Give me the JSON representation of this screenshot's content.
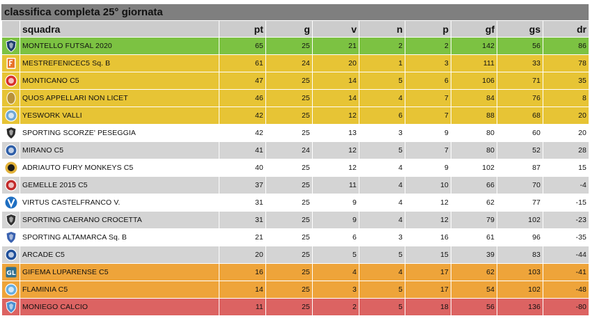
{
  "title": "classifica completa 25° giornata",
  "columns": {
    "team": "squadra",
    "pt": "pt",
    "g": "g",
    "v": "v",
    "n": "n",
    "p": "p",
    "gf": "gf",
    "gs": "gs",
    "dr": "dr"
  },
  "rows": [
    {
      "team": "MONTELLO FUTSAL 2020",
      "pt": "65",
      "g": "25",
      "v": "21",
      "n": "2",
      "p": "2",
      "gf": "142",
      "gs": "56",
      "dr": "86",
      "zone": "green",
      "logo_color": "#1f3f6f",
      "logo": "shield-icon"
    },
    {
      "team": "MESTREFENICEC5 Sq. B",
      "pt": "61",
      "g": "24",
      "v": "20",
      "n": "1",
      "p": "3",
      "gf": "111",
      "gs": "33",
      "dr": "78",
      "zone": "yellow",
      "logo_color": "#e8742a",
      "logo": "phoenix-icon"
    },
    {
      "team": "MONTICANO C5",
      "pt": "47",
      "g": "25",
      "v": "14",
      "n": "5",
      "p": "6",
      "gf": "106",
      "gs": "71",
      "dr": "35",
      "zone": "yellow",
      "logo_color": "#d9302a",
      "logo": "round-crest-icon"
    },
    {
      "team": "QUOS APPELLARI NON LICET",
      "pt": "46",
      "g": "25",
      "v": "14",
      "n": "4",
      "p": "7",
      "gf": "84",
      "gs": "76",
      "dr": "8",
      "zone": "yellow",
      "logo_color": "#b8923a",
      "logo": "oval-crest-icon"
    },
    {
      "team": "YESWORK VALLI",
      "pt": "42",
      "g": "25",
      "v": "12",
      "n": "6",
      "p": "7",
      "gf": "88",
      "gs": "68",
      "dr": "20",
      "zone": "yellow",
      "logo_color": "#6fa8d6",
      "logo": "round-badge-icon"
    },
    {
      "team": "SPORTING SCORZE' PESEGGIA",
      "pt": "42",
      "g": "25",
      "v": "13",
      "n": "3",
      "p": "9",
      "gf": "80",
      "gs": "60",
      "dr": "20",
      "zone": "white",
      "logo_color": "#2b2b2b",
      "logo": "shield-icon"
    },
    {
      "team": "MIRANO C5",
      "pt": "41",
      "g": "24",
      "v": "12",
      "n": "5",
      "p": "7",
      "gf": "80",
      "gs": "52",
      "dr": "28",
      "zone": "grey",
      "logo_color": "#2f5fa8",
      "logo": "round-badge-icon"
    },
    {
      "team": "ADRIAUTO FURY MONKEYS C5",
      "pt": "40",
      "g": "25",
      "v": "12",
      "n": "4",
      "p": "9",
      "gf": "102",
      "gs": "87",
      "dr": "15",
      "zone": "white",
      "logo_color": "#1a1a1a",
      "logo": "monkey-badge-icon"
    },
    {
      "team": "GEMELLE 2015 C5",
      "pt": "37",
      "g": "25",
      "v": "11",
      "n": "4",
      "p": "10",
      "gf": "66",
      "gs": "70",
      "dr": "-4",
      "zone": "grey",
      "logo_color": "#c22a2a",
      "logo": "round-crest-icon"
    },
    {
      "team": "VIRTUS CASTELFRANCO V.",
      "pt": "31",
      "g": "25",
      "v": "9",
      "n": "4",
      "p": "12",
      "gf": "62",
      "gs": "77",
      "dr": "-15",
      "zone": "white",
      "logo_color": "#1f6fc2",
      "logo": "v-badge-icon"
    },
    {
      "team": "SPORTING CAERANO CROCETTA",
      "pt": "31",
      "g": "25",
      "v": "9",
      "n": "4",
      "p": "12",
      "gf": "79",
      "gs": "102",
      "dr": "-23",
      "zone": "grey",
      "logo_color": "#333333",
      "logo": "shield-icon"
    },
    {
      "team": "SPORTING ALTAMARCA Sq. B",
      "pt": "21",
      "g": "25",
      "v": "6",
      "n": "3",
      "p": "16",
      "gf": "61",
      "gs": "96",
      "dr": "-35",
      "zone": "white",
      "logo_color": "#3a62b0",
      "logo": "shield-icon"
    },
    {
      "team": "ARCADE C5",
      "pt": "20",
      "g": "25",
      "v": "5",
      "n": "5",
      "p": "15",
      "gf": "39",
      "gs": "83",
      "dr": "-44",
      "zone": "grey",
      "logo_color": "#1f4f9a",
      "logo": "round-badge-icon"
    },
    {
      "team": "GIFEMA LUPARENSE C5",
      "pt": "16",
      "g": "25",
      "v": "4",
      "n": "4",
      "p": "17",
      "gf": "62",
      "gs": "103",
      "dr": "-41",
      "zone": "orange",
      "logo_color": "#2f6f8f",
      "logo": "square-badge-icon"
    },
    {
      "team": "FLAMINIA C5",
      "pt": "14",
      "g": "25",
      "v": "3",
      "n": "5",
      "p": "17",
      "gf": "54",
      "gs": "102",
      "dr": "-48",
      "zone": "orange",
      "logo_color": "#6aaee0",
      "logo": "round-badge-icon"
    },
    {
      "team": "MONIEGO CALCIO",
      "pt": "11",
      "g": "25",
      "v": "2",
      "n": "5",
      "p": "18",
      "gf": "56",
      "gs": "136",
      "dr": "-80",
      "zone": "red",
      "logo_color": "#4a8fd0",
      "logo": "shield-icon"
    }
  ]
}
